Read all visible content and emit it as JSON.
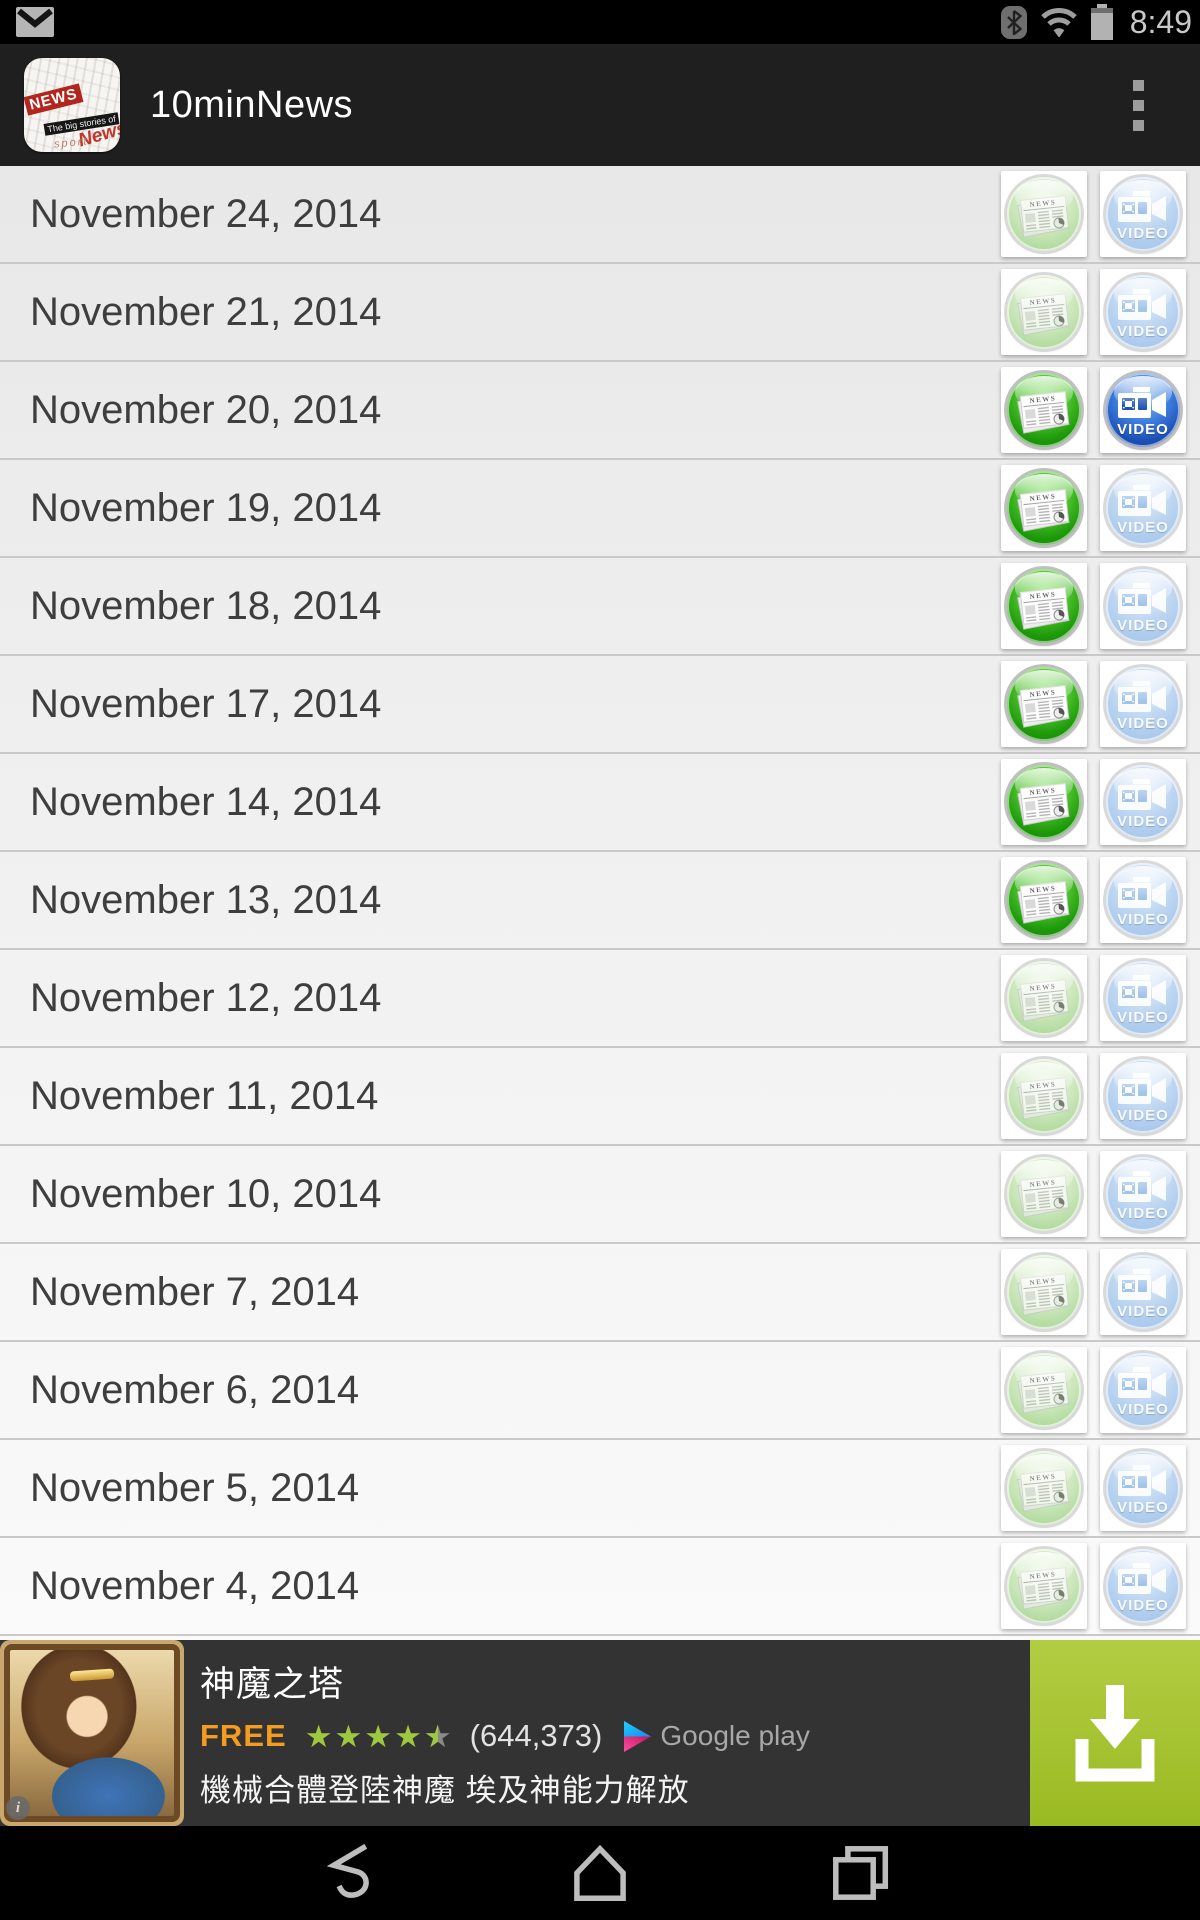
{
  "status_bar": {
    "time": "8:49",
    "icons": [
      "email-notification",
      "bluetooth",
      "wifi",
      "battery"
    ]
  },
  "action_bar": {
    "title": "10minNews",
    "app_icon_text": [
      "NEWS",
      "The big stories of",
      "News",
      "sport"
    ]
  },
  "list": {
    "news_badge": "NEWS",
    "video_badge": "VIDEO",
    "rows": [
      {
        "date": "November 24, 2014",
        "news": "read",
        "video": "read"
      },
      {
        "date": "November 21, 2014",
        "news": "read",
        "video": "read"
      },
      {
        "date": "November 20, 2014",
        "news": "unread",
        "video": "unread"
      },
      {
        "date": "November 19, 2014",
        "news": "unread",
        "video": "read"
      },
      {
        "date": "November 18, 2014",
        "news": "unread",
        "video": "read"
      },
      {
        "date": "November 17, 2014",
        "news": "unread",
        "video": "read"
      },
      {
        "date": "November 14, 2014",
        "news": "unread",
        "video": "read"
      },
      {
        "date": "November 13, 2014",
        "news": "unread",
        "video": "read"
      },
      {
        "date": "November 12, 2014",
        "news": "read",
        "video": "read"
      },
      {
        "date": "November 11, 2014",
        "news": "read",
        "video": "read"
      },
      {
        "date": "November 10, 2014",
        "news": "read",
        "video": "read"
      },
      {
        "date": "November 7, 2014",
        "news": "read",
        "video": "read"
      },
      {
        "date": "November 6, 2014",
        "news": "read",
        "video": "read"
      },
      {
        "date": "November 5, 2014",
        "news": "read",
        "video": "read"
      },
      {
        "date": "November 4, 2014",
        "news": "read",
        "video": "read"
      }
    ]
  },
  "ad": {
    "title": "神魔之塔",
    "price": "FREE",
    "rating": 4.5,
    "star_glyph": "★",
    "rating_count": "(644,373)",
    "store": "Google play",
    "description": "機械合體登陸神魔 埃及神能力解放",
    "info_badge": "i",
    "colors": {
      "button_green": "#9aba22",
      "price_orange": "#f49c1e",
      "star_green": "#9dc840"
    }
  },
  "nav_bar": {
    "buttons": [
      "back",
      "home",
      "recents"
    ]
  }
}
